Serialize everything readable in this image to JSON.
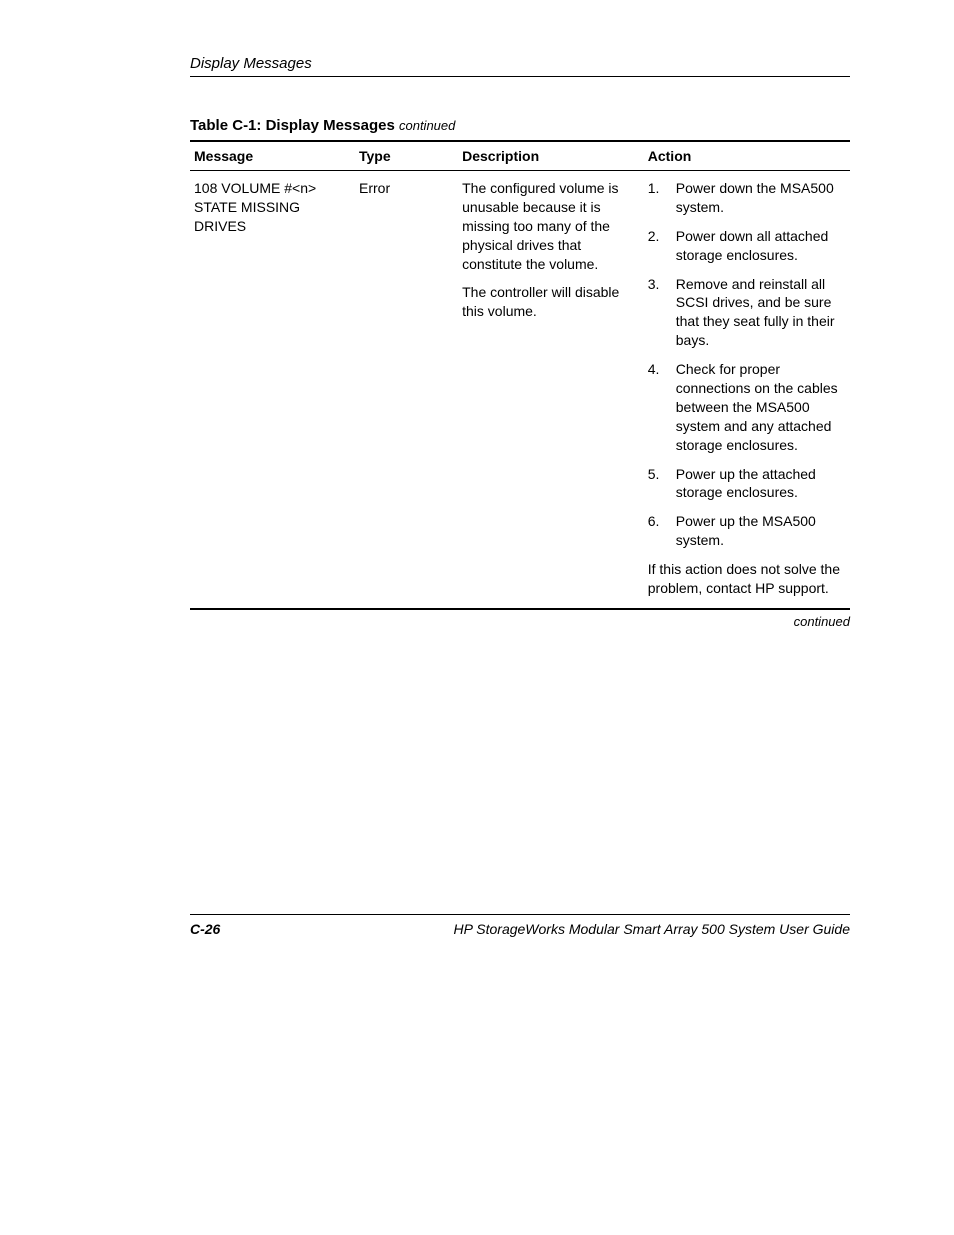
{
  "header": {
    "section_title": "Display Messages"
  },
  "table": {
    "title_prefix": "Table C-1:  Display Messages",
    "title_suffix": "continued",
    "columns": {
      "message": "Message",
      "type": "Type",
      "description": "Description",
      "action": "Action"
    },
    "row": {
      "message": "108 VOLUME #<n> STATE MISSING DRIVES",
      "type": "Error",
      "description_p1": "The configured volume is unusable because it is missing too many of the physical drives that constitute the volume.",
      "description_p2": "The controller will disable this volume.",
      "actions": [
        "Power down the MSA500 system.",
        "Power down all attached storage enclosures.",
        "Remove and reinstall all SCSI drives, and be sure that they seat fully in their bays.",
        "Check for proper connections on the cables between the MSA500 system and any attached storage enclosures.",
        "Power up the attached storage enclosures.",
        "Power up the MSA500 system."
      ],
      "action_note": "If this action does not solve the problem, contact HP support."
    },
    "footer": "continued"
  },
  "footer": {
    "page_number": "C-26",
    "doc_title": "HP StorageWorks Modular Smart Array 500 System User Guide"
  }
}
